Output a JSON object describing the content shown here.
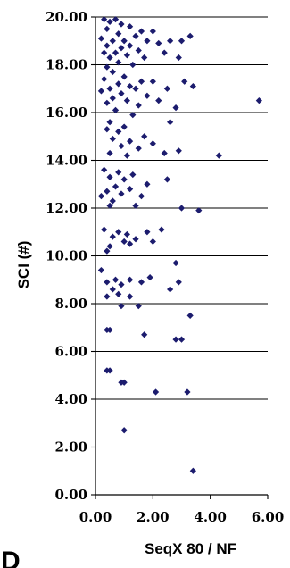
{
  "chart_data": {
    "type": "scatter",
    "xlabel": "SeqX 80 / NF",
    "ylabel": "SCI (#)",
    "panel_label": "D",
    "xlim": [
      0,
      6
    ],
    "ylim": [
      0,
      20
    ],
    "x_ticks": [
      "0.00",
      "2.00",
      "4.00",
      "6.00"
    ],
    "y_ticks": [
      "0.00",
      "2.00",
      "4.00",
      "6.00",
      "8.00",
      "10.00",
      "12.00",
      "14.00",
      "16.00",
      "18.00",
      "20.00"
    ],
    "grid": "horizontal",
    "marker_color": "#1c1c6e",
    "points": [
      [
        0.3,
        19.9
      ],
      [
        0.7,
        19.9
      ],
      [
        0.5,
        19.8
      ],
      [
        0.9,
        19.7
      ],
      [
        1.2,
        19.6
      ],
      [
        0.4,
        19.5
      ],
      [
        1.6,
        19.4
      ],
      [
        2.0,
        19.4
      ],
      [
        0.8,
        19.3
      ],
      [
        1.4,
        19.2
      ],
      [
        3.3,
        19.2
      ],
      [
        0.2,
        19.1
      ],
      [
        0.6,
        19.0
      ],
      [
        1.0,
        19.0
      ],
      [
        1.8,
        19.0
      ],
      [
        2.6,
        19.0
      ],
      [
        3.0,
        19.0
      ],
      [
        2.2,
        18.9
      ],
      [
        0.4,
        18.8
      ],
      [
        1.2,
        18.8
      ],
      [
        0.9,
        18.7
      ],
      [
        1.5,
        18.6
      ],
      [
        0.3,
        18.5
      ],
      [
        0.7,
        18.5
      ],
      [
        2.4,
        18.5
      ],
      [
        1.1,
        18.4
      ],
      [
        0.5,
        18.3
      ],
      [
        1.7,
        18.3
      ],
      [
        2.9,
        18.3
      ],
      [
        0.8,
        18.1
      ],
      [
        1.3,
        18.0
      ],
      [
        0.4,
        17.9
      ],
      [
        0.6,
        17.7
      ],
      [
        1.0,
        17.5
      ],
      [
        0.3,
        17.4
      ],
      [
        1.6,
        17.3
      ],
      [
        2.0,
        17.3
      ],
      [
        3.1,
        17.3
      ],
      [
        0.8,
        17.2
      ],
      [
        1.2,
        17.1
      ],
      [
        0.5,
        17.0
      ],
      [
        1.4,
        17.0
      ],
      [
        2.5,
        17.0
      ],
      [
        3.4,
        17.1
      ],
      [
        0.2,
        16.9
      ],
      [
        0.9,
        16.8
      ],
      [
        1.8,
        16.7
      ],
      [
        0.6,
        16.6
      ],
      [
        1.1,
        16.5
      ],
      [
        2.2,
        16.5
      ],
      [
        5.7,
        16.5
      ],
      [
        0.4,
        16.4
      ],
      [
        1.5,
        16.3
      ],
      [
        2.8,
        16.2
      ],
      [
        0.7,
        16.1
      ],
      [
        1.3,
        15.9
      ],
      [
        0.5,
        15.6
      ],
      [
        2.6,
        15.6
      ],
      [
        1.0,
        15.4
      ],
      [
        0.4,
        15.3
      ],
      [
        0.8,
        15.2
      ],
      [
        1.7,
        15.0
      ],
      [
        0.6,
        14.9
      ],
      [
        1.2,
        14.8
      ],
      [
        2.0,
        14.7
      ],
      [
        0.9,
        14.6
      ],
      [
        1.5,
        14.5
      ],
      [
        2.9,
        14.4
      ],
      [
        0.5,
        14.3
      ],
      [
        1.1,
        14.2
      ],
      [
        2.4,
        14.3
      ],
      [
        4.3,
        14.2
      ],
      [
        0.3,
        13.6
      ],
      [
        0.8,
        13.5
      ],
      [
        1.3,
        13.4
      ],
      [
        0.5,
        13.3
      ],
      [
        1.0,
        13.2
      ],
      [
        1.8,
        13.0
      ],
      [
        2.5,
        13.2
      ],
      [
        0.7,
        12.9
      ],
      [
        1.2,
        12.8
      ],
      [
        0.4,
        12.7
      ],
      [
        0.9,
        12.6
      ],
      [
        1.6,
        12.5
      ],
      [
        0.2,
        12.5
      ],
      [
        0.6,
        12.3
      ],
      [
        1.4,
        12.1
      ],
      [
        3.0,
        12.0
      ],
      [
        3.6,
        11.9
      ],
      [
        0.5,
        12.1
      ],
      [
        0.3,
        11.1
      ],
      [
        0.8,
        11.0
      ],
      [
        1.1,
        10.9
      ],
      [
        1.8,
        11.0
      ],
      [
        2.3,
        11.1
      ],
      [
        0.6,
        10.8
      ],
      [
        1.4,
        10.7
      ],
      [
        1.0,
        10.6
      ],
      [
        0.5,
        10.4
      ],
      [
        1.2,
        10.5
      ],
      [
        2.0,
        10.6
      ],
      [
        0.4,
        10.2
      ],
      [
        2.8,
        9.7
      ],
      [
        0.2,
        9.4
      ],
      [
        1.9,
        9.1
      ],
      [
        0.7,
        9.0
      ],
      [
        0.4,
        8.9
      ],
      [
        1.2,
        9.0
      ],
      [
        0.9,
        8.8
      ],
      [
        1.6,
        8.9
      ],
      [
        2.9,
        8.9
      ],
      [
        0.6,
        8.6
      ],
      [
        2.6,
        8.6
      ],
      [
        0.4,
        8.3
      ],
      [
        0.8,
        8.4
      ],
      [
        1.2,
        8.3
      ],
      [
        0.9,
        7.9
      ],
      [
        1.5,
        7.9
      ],
      [
        3.3,
        7.5
      ],
      [
        0.4,
        6.9
      ],
      [
        0.5,
        6.9
      ],
      [
        1.7,
        6.7
      ],
      [
        2.8,
        6.5
      ],
      [
        3.0,
        6.5
      ],
      [
        0.4,
        5.2
      ],
      [
        0.5,
        5.2
      ],
      [
        0.9,
        4.7
      ],
      [
        1.0,
        4.7
      ],
      [
        2.1,
        4.3
      ],
      [
        3.2,
        4.3
      ],
      [
        1.0,
        2.7
      ],
      [
        3.4,
        1.0
      ]
    ]
  }
}
